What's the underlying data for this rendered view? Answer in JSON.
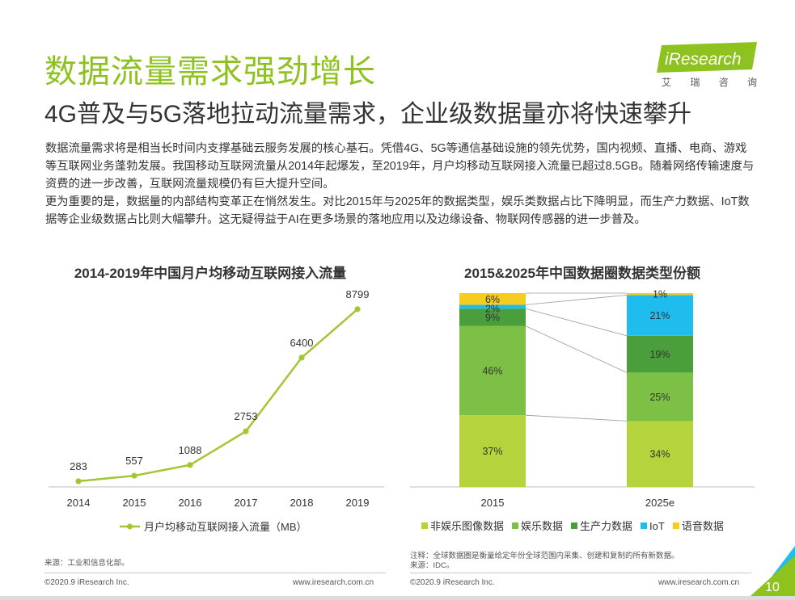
{
  "header": {
    "title": "数据流量需求强劲增长",
    "subtitle": "4G普及与5G落地拉动流量需求，企业级数据量亦将快速攀升",
    "logo_text": "iResearch",
    "logo_cn": [
      "艾",
      "瑞",
      "咨",
      "询"
    ]
  },
  "body": {
    "p1": "数据流量需求将是相当长时间内支撑基础云服务发展的核心基石。凭借4G、5G等通信基础设施的领先优势，国内视频、直播、电商、游戏等互联网业务蓬勃发展。我国移动互联网流量从2014年起爆发，至2019年，月户均移动互联网接入流量已超过8.5GB。随着网络传输速度与资费的进一步改善，互联网流量规模仍有巨大提升空间。",
    "p2": "更为重要的是，数据量的内部结构变革正在悄然发生。对比2015年与2025年的数据类型，娱乐类数据占比下降明显，而生产力数据、IoT数据等企业级数据占比则大幅攀升。这无疑得益于AI在更多场景的落地应用以及边缘设备、物联网传感器的进一步普及。"
  },
  "chart_data": [
    {
      "type": "line",
      "title": "2014-2019年中国月户均移动互联网接入流量",
      "x": [
        "2014",
        "2015",
        "2016",
        "2017",
        "2018",
        "2019"
      ],
      "series": [
        {
          "name": "月户均移动互联网接入流量（MB）",
          "values": [
            283,
            557,
            1088,
            2753,
            6400,
            8799
          ],
          "color": "#a3c734"
        }
      ],
      "ylim": [
        0,
        10000
      ],
      "grid": false,
      "legend": "bottom"
    },
    {
      "type": "bar",
      "stacked": true,
      "title": "2015&2025年中国数据圈数据类型份额",
      "categories": [
        "2015",
        "2025e"
      ],
      "series": [
        {
          "name": "非娱乐图像数据",
          "values": [
            37,
            34
          ],
          "labels": [
            "37%",
            "34%"
          ],
          "color": "#b5d33d"
        },
        {
          "name": "娱乐数据",
          "values": [
            46,
            25
          ],
          "labels": [
            "46%",
            "25%"
          ],
          "color": "#7cc045"
        },
        {
          "name": "生产力数据",
          "values": [
            9,
            19
          ],
          "labels": [
            "9%",
            "19%"
          ],
          "color": "#4a9e3c"
        },
        {
          "name": "IoT",
          "values": [
            2,
            21
          ],
          "labels": [
            "2%",
            "21%"
          ],
          "color": "#1fbcee"
        },
        {
          "name": "语音数据",
          "values": [
            6,
            1
          ],
          "labels": [
            "6%",
            "1%"
          ],
          "color": "#f5cd1f"
        }
      ],
      "ylim": [
        0,
        100
      ],
      "legend": "bottom"
    }
  ],
  "notes": {
    "left_source": "来源：工业和信息化部。",
    "right_note": "注释：全球数据圈是衡量给定年份全球范围内采集、创建和复制的所有新数据。",
    "right_source": "来源：IDC。"
  },
  "footer": {
    "copyright_left": "©2020.9 iResearch Inc.",
    "url_left": "www.iresearch.com.cn",
    "copyright_right": "©2020.9 iResearch Inc.",
    "url_right": "www.iresearch.com.cn",
    "page_number": "10"
  }
}
